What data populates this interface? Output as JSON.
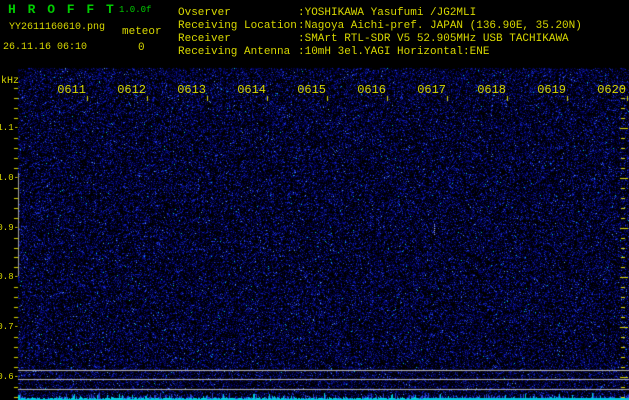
{
  "header": {
    "app_name": "H R O F F T",
    "app_version": "1.0.0f",
    "filename": "YY2611160610.png",
    "mode_label": "meteor",
    "datetime": "26.11.16 06:10",
    "meteor_count": "0",
    "station_info": [
      {
        "label": "Ovserver",
        "value": ":YOSHIKAWA Yasufumi /JG2MLI"
      },
      {
        "label": "Receiving Location",
        "value": ":Nagoya Aichi-pref. JAPAN (136.90E, 35.20N)"
      },
      {
        "label": "Receiver",
        "value": ":SMArt RTL-SDR V5 52.905MHz USB TACHIKAWA"
      },
      {
        "label": "Receiving Antenna",
        "value": ":10mH 3el.YAGI Horizontal:ENE"
      }
    ]
  },
  "spectrogram": {
    "unit_label": "kHz",
    "time_tick_labels": [
      "0611",
      "0612",
      "0613",
      "0614",
      "0615",
      "0616",
      "0617",
      "0618",
      "0619",
      "0620"
    ],
    "freq_tick_labels": [
      "1.1",
      "1.0",
      "0.9",
      "0.8",
      "0.7",
      "0.6"
    ],
    "colors": {
      "background": "#000000",
      "label_yellow": "#d8d800",
      "title_green": "#00cc00",
      "level_line_gray": "#b6b6b6",
      "noise_dot_blue": "#2a3ad0",
      "signal_bar_blue": "#2846d2",
      "signal_bar_cyan": "#00c8dc"
    }
  }
}
